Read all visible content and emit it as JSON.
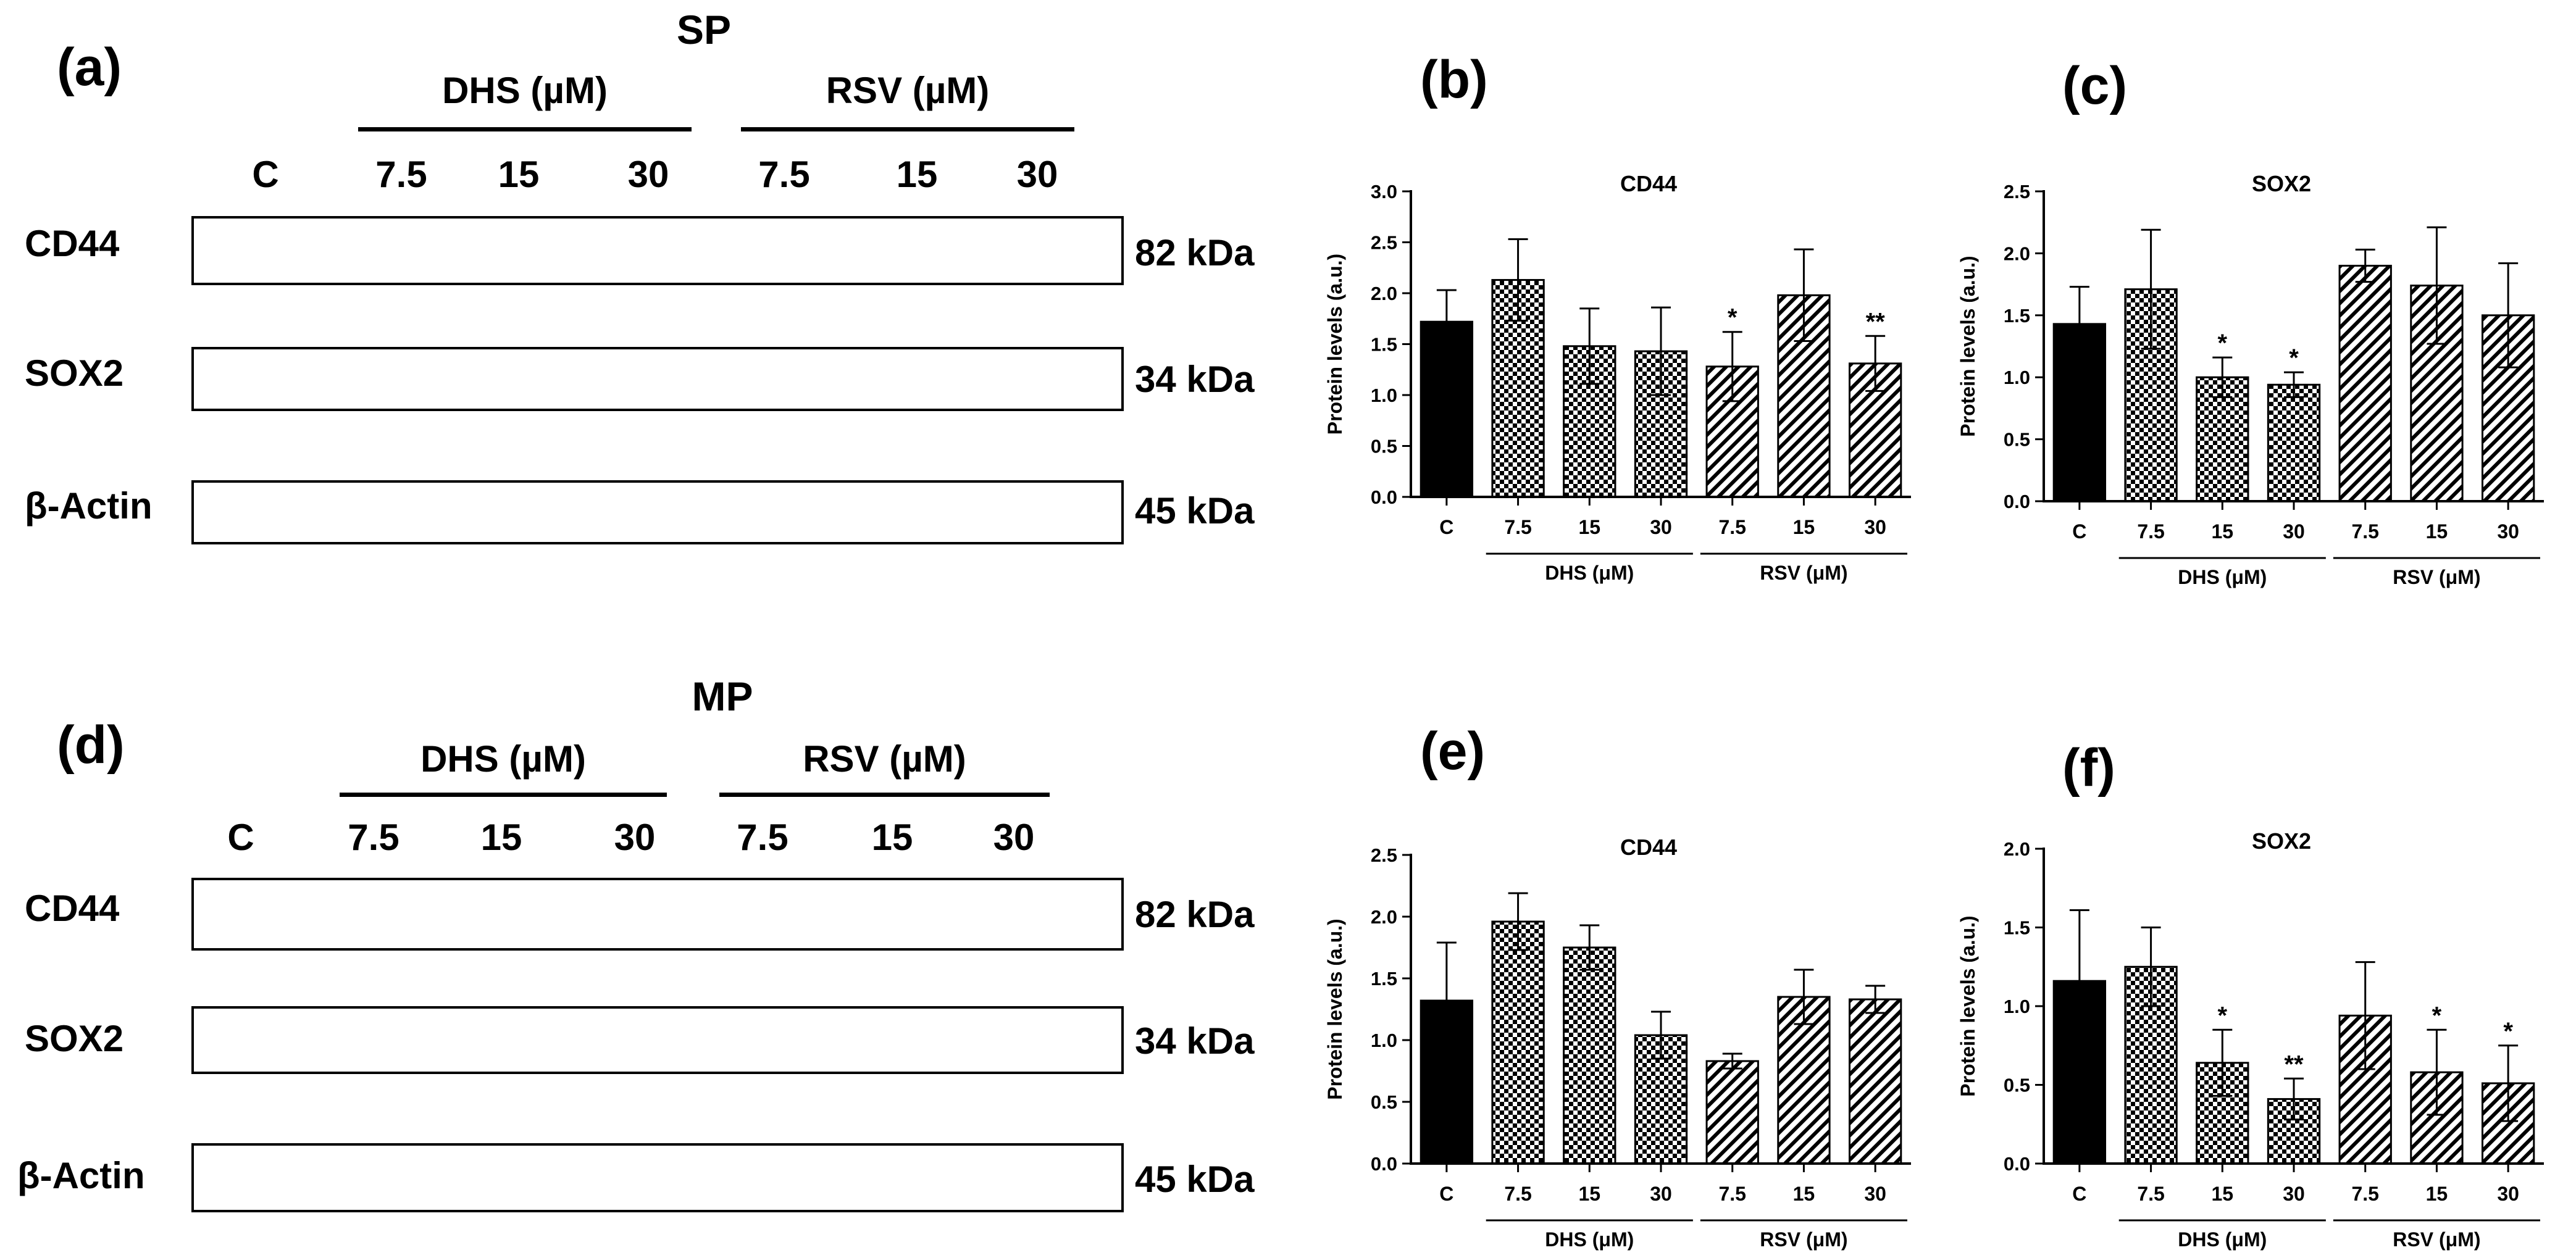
{
  "figure": {
    "panels": [
      {
        "id": "a",
        "label": "(a)"
      },
      {
        "id": "b",
        "label": "(b)"
      },
      {
        "id": "c",
        "label": "(c)"
      },
      {
        "id": "d",
        "label": "(d)"
      },
      {
        "id": "e",
        "label": "(e)"
      },
      {
        "id": "f",
        "label": "(f)"
      }
    ],
    "blots": [
      {
        "title": "SP",
        "groups": [
          "DHS (µM)",
          "RSV (µM)"
        ],
        "lanes": [
          "C",
          "7.5",
          "15",
          "30",
          "7.5",
          "15",
          "30"
        ],
        "rows": [
          {
            "name": "CD44",
            "kda": "82 kDa"
          },
          {
            "name": "SOX2",
            "kda": "34 kDa"
          },
          {
            "name": "β-Actin",
            "kda": "45 kDa"
          }
        ]
      },
      {
        "title": "MP",
        "groups": [
          "DHS (µM)",
          "RSV (µM)"
        ],
        "lanes": [
          "C",
          "7.5",
          "15",
          "30",
          "7.5",
          "15",
          "30"
        ],
        "rows": [
          {
            "name": "CD44",
            "kda": "82 kDa"
          },
          {
            "name": "SOX2",
            "kda": "34 kDa"
          },
          {
            "name": "β-Actin",
            "kda": "45 kDa"
          }
        ]
      }
    ]
  },
  "chart_data": [
    {
      "panel": "(b)",
      "type": "bar",
      "title": "CD44",
      "ylabel": "Protein levels (a.u.)",
      "ylim": [
        0,
        3.0
      ],
      "yticks": [
        "0.0",
        "0.5",
        "1.0",
        "1.5",
        "2.0",
        "2.5",
        "3.0"
      ],
      "categories": [
        "C",
        "7.5",
        "15",
        "30",
        "7.5",
        "15",
        "30"
      ],
      "groups": [
        "DHS (μM)",
        "RSV (μM)"
      ],
      "values": [
        1.72,
        2.13,
        1.48,
        1.43,
        1.28,
        1.98,
        1.31
      ],
      "errors": [
        0.31,
        0.4,
        0.37,
        0.43,
        0.34,
        0.45,
        0.27
      ],
      "significance": [
        "",
        "",
        "",
        "",
        "*",
        "",
        "**"
      ],
      "fills": [
        "solid",
        "checker",
        "checker",
        "checker",
        "hatch",
        "hatch",
        "hatch"
      ]
    },
    {
      "panel": "(c)",
      "type": "bar",
      "title": "SOX2",
      "ylabel": "Protein levels (a.u.)",
      "ylim": [
        0,
        2.5
      ],
      "yticks": [
        "0.0",
        "0.5",
        "1.0",
        "1.5",
        "2.0",
        "2.5"
      ],
      "categories": [
        "C",
        "7.5",
        "15",
        "30",
        "7.5",
        "15",
        "30"
      ],
      "groups": [
        "DHS (μM)",
        "RSV (μM)"
      ],
      "values": [
        1.43,
        1.71,
        1.0,
        0.94,
        1.9,
        1.74,
        1.5
      ],
      "errors": [
        0.3,
        0.48,
        0.16,
        0.1,
        0.13,
        0.47,
        0.42
      ],
      "significance": [
        "",
        "",
        "*",
        "*",
        "",
        "",
        ""
      ],
      "fills": [
        "solid",
        "checker",
        "checker",
        "checker",
        "hatch",
        "hatch",
        "hatch"
      ]
    },
    {
      "panel": "(e)",
      "type": "bar",
      "title": "CD44",
      "ylabel": "Protein levels (a.u.)",
      "ylim": [
        0,
        2.5
      ],
      "yticks": [
        "0.0",
        "0.5",
        "1.0",
        "1.5",
        "2.0",
        "2.5"
      ],
      "categories": [
        "C",
        "7.5",
        "15",
        "30",
        "7.5",
        "15",
        "30"
      ],
      "groups": [
        "DHS (μM)",
        "RSV (μM)"
      ],
      "values": [
        1.32,
        1.96,
        1.75,
        1.04,
        0.83,
        1.35,
        1.33
      ],
      "errors": [
        0.47,
        0.23,
        0.18,
        0.19,
        0.06,
        0.22,
        0.11
      ],
      "significance": [
        "",
        "",
        "",
        "",
        "",
        "",
        ""
      ],
      "fills": [
        "solid",
        "checker",
        "checker",
        "checker",
        "hatch",
        "hatch",
        "hatch"
      ]
    },
    {
      "panel": "(f)",
      "type": "bar",
      "title": "SOX2",
      "ylabel": "Protein levels (a.u.)",
      "ylim": [
        0,
        2.0
      ],
      "yticks": [
        "0.0",
        "0.5",
        "1.0",
        "1.5",
        "2.0"
      ],
      "categories": [
        "C",
        "7.5",
        "15",
        "30",
        "7.5",
        "15",
        "30"
      ],
      "groups": [
        "DHS (μM)",
        "RSV (μM)"
      ],
      "values": [
        1.16,
        1.25,
        0.64,
        0.41,
        0.94,
        0.58,
        0.51
      ],
      "errors": [
        0.45,
        0.25,
        0.21,
        0.13,
        0.34,
        0.27,
        0.24
      ],
      "significance": [
        "",
        "",
        "*",
        "**",
        "",
        "*",
        "*"
      ],
      "fills": [
        "solid",
        "checker",
        "checker",
        "checker",
        "hatch",
        "hatch",
        "hatch"
      ]
    }
  ]
}
